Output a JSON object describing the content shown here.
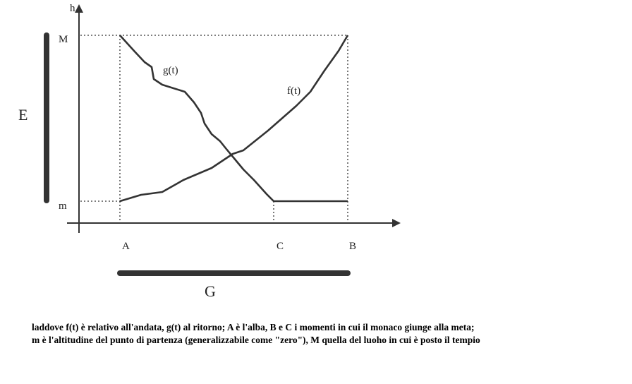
{
  "diagram": {
    "axis_y_label": "h",
    "level_max": "M",
    "level_min": "m",
    "point_a": "A",
    "point_c": "C",
    "point_b": "B",
    "curve_g": "g(t)",
    "curve_f": "f(t)",
    "bar_e": "E",
    "bar_g": "G"
  },
  "caption": {
    "lines": [
      "laddove f(t) è relativo all'andata, g(t) al ritorno; A è l'alba, B e C i momenti in cui il monaco giunge alla meta;",
      "m è l'altitudine del punto di partenza (generalizzabile come \"zero\"), M quella del luoho in cui è posto il tempio"
    ]
  }
}
